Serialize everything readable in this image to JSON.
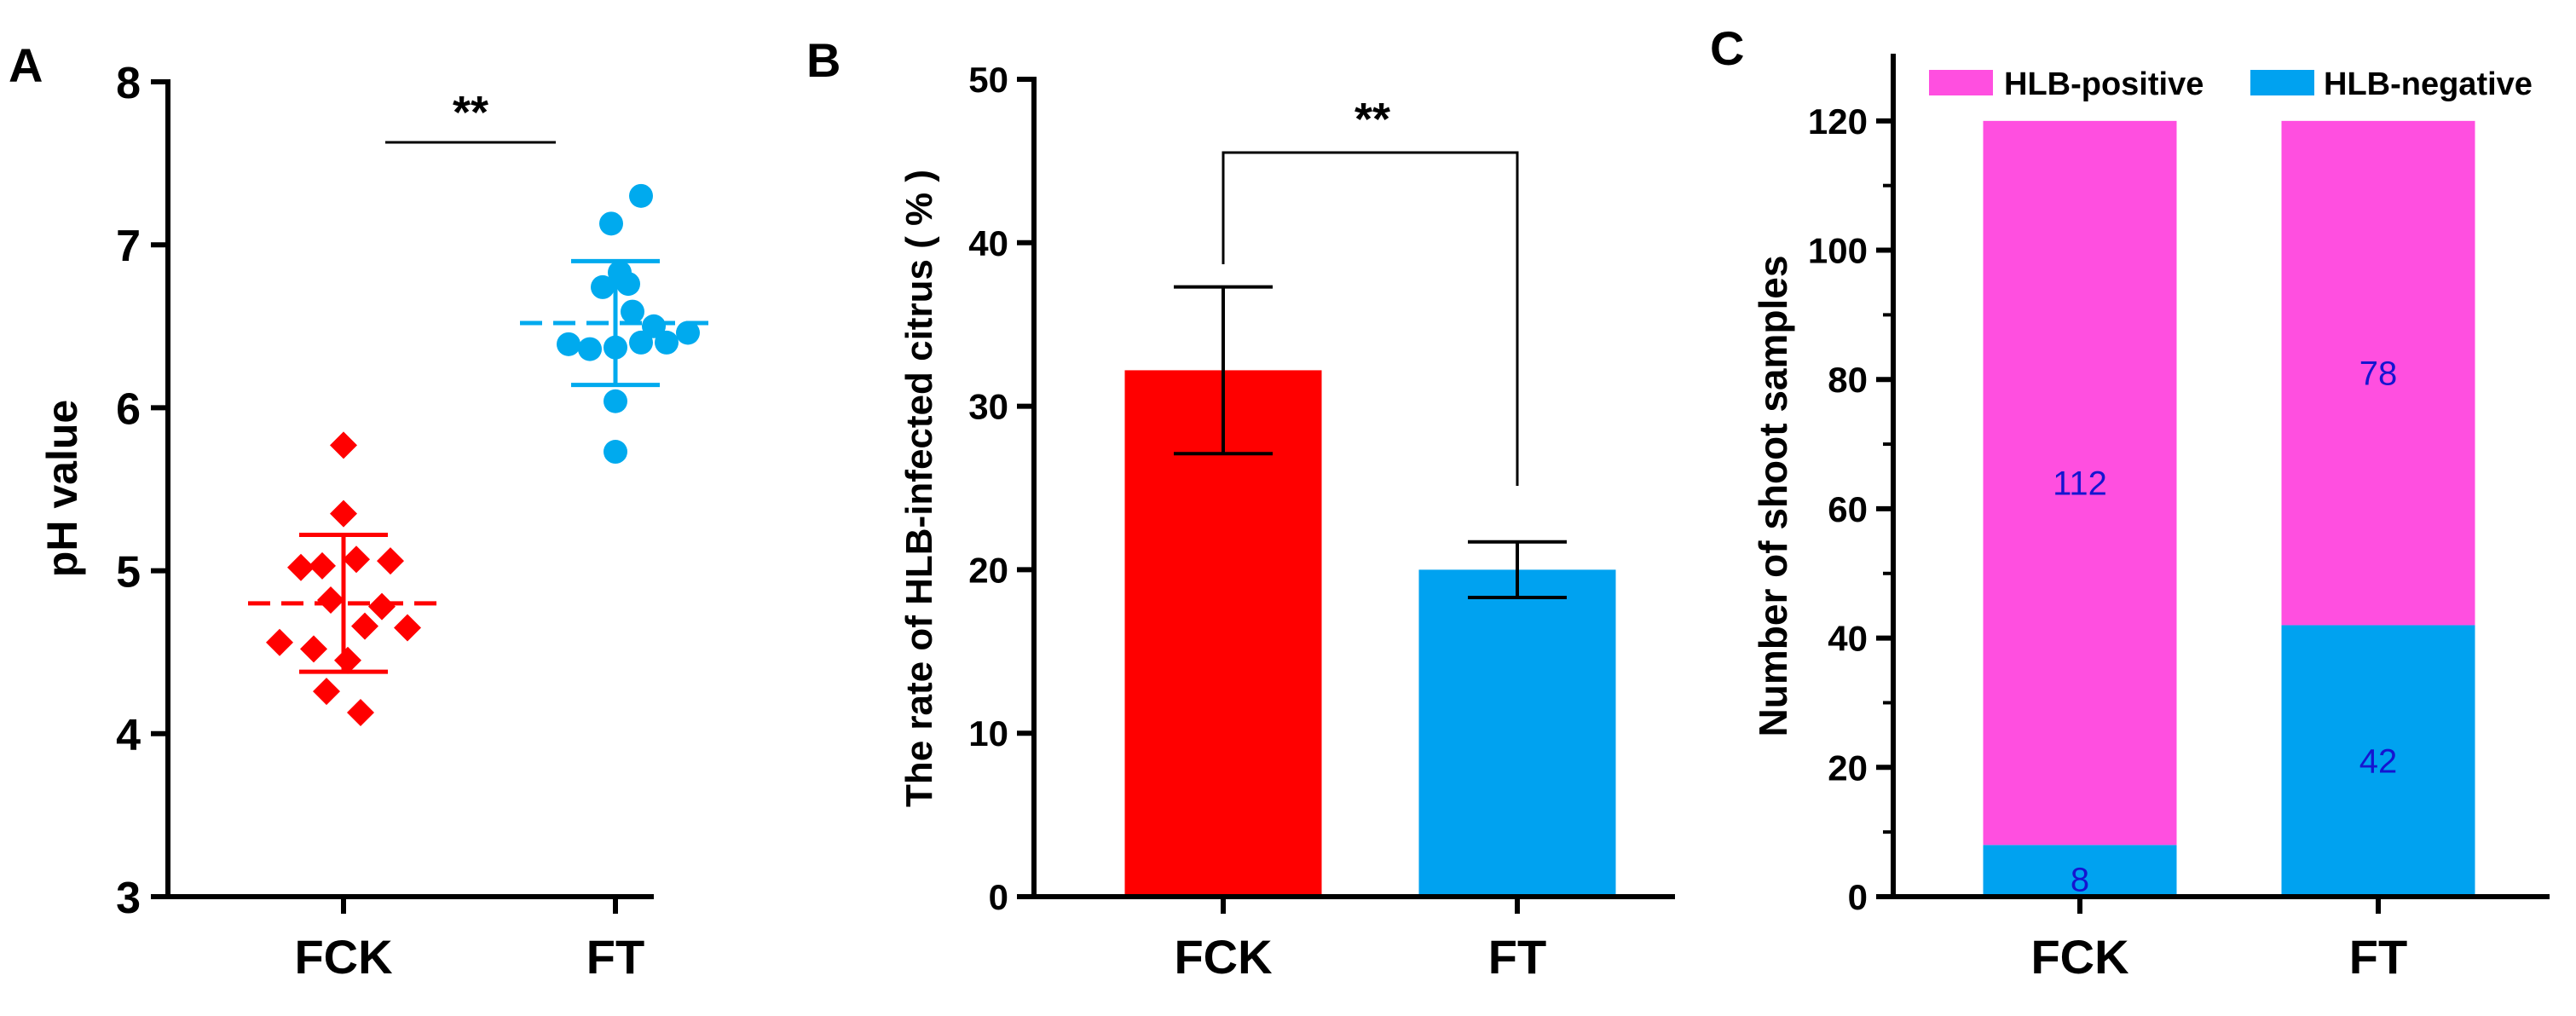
{
  "chart_data": [
    {
      "panel": "A",
      "type": "scatter",
      "title": "",
      "xlabel": "",
      "ylabel": "pH value",
      "ylim": [
        3,
        8
      ],
      "yticks": [
        3,
        4,
        5,
        6,
        7,
        8
      ],
      "categories": [
        "FCK",
        "FT"
      ],
      "significance": "**",
      "series": [
        {
          "name": "FCK",
          "color": "#ff0000",
          "marker": "diamond",
          "mean": 4.8,
          "sd": 0.42,
          "points": [
            {
              "offset": 0.0,
              "y": 5.77
            },
            {
              "offset": 0.0,
              "y": 5.35
            },
            {
              "offset": -0.5,
              "y": 5.02
            },
            {
              "offset": -0.25,
              "y": 5.03
            },
            {
              "offset": 0.15,
              "y": 5.07
            },
            {
              "offset": 0.55,
              "y": 5.06
            },
            {
              "offset": -0.15,
              "y": 4.82
            },
            {
              "offset": 0.45,
              "y": 4.78
            },
            {
              "offset": 0.25,
              "y": 4.66
            },
            {
              "offset": 0.75,
              "y": 4.65
            },
            {
              "offset": -0.75,
              "y": 4.56
            },
            {
              "offset": -0.35,
              "y": 4.52
            },
            {
              "offset": 0.05,
              "y": 4.45
            },
            {
              "offset": -0.2,
              "y": 4.26
            },
            {
              "offset": 0.2,
              "y": 4.13
            }
          ]
        },
        {
          "name": "FT",
          "color": "#00aaee",
          "marker": "circle",
          "mean": 6.52,
          "sd": 0.38,
          "points": [
            {
              "offset": 0.3,
              "y": 7.3
            },
            {
              "offset": -0.05,
              "y": 7.13
            },
            {
              "offset": 0.05,
              "y": 6.83
            },
            {
              "offset": -0.15,
              "y": 6.74
            },
            {
              "offset": 0.15,
              "y": 6.76
            },
            {
              "offset": 0.2,
              "y": 6.59
            },
            {
              "offset": 0.45,
              "y": 6.5
            },
            {
              "offset": 0.85,
              "y": 6.46
            },
            {
              "offset": 0.6,
              "y": 6.4
            },
            {
              "offset": -0.55,
              "y": 6.39
            },
            {
              "offset": -0.3,
              "y": 6.36
            },
            {
              "offset": 0.0,
              "y": 6.37
            },
            {
              "offset": 0.3,
              "y": 6.4
            },
            {
              "offset": 0.0,
              "y": 6.04
            },
            {
              "offset": 0.0,
              "y": 5.73
            }
          ]
        }
      ]
    },
    {
      "panel": "B",
      "type": "bar",
      "title": "",
      "xlabel": "",
      "ylabel": "The rate of HLB-infected citrus ( % )",
      "ylim": [
        0,
        50
      ],
      "yticks": [
        0,
        10,
        20,
        30,
        40,
        50
      ],
      "categories": [
        "FCK",
        "FT"
      ],
      "values": [
        32.2,
        20.0
      ],
      "errors": [
        5.1,
        1.7
      ],
      "colors": [
        "#ff0000",
        "#00a2f0"
      ],
      "significance": "**"
    },
    {
      "panel": "C",
      "type": "bar",
      "stacked": true,
      "title": "",
      "xlabel": "",
      "ylabel": "Number of shoot samples",
      "ylim": [
        0,
        130
      ],
      "yticks": [
        0,
        20,
        40,
        60,
        80,
        100,
        120
      ],
      "categories": [
        "FCK",
        "FT"
      ],
      "series": [
        {
          "name": "HLB-negative",
          "values": [
            8,
            42
          ],
          "color": "#00a2f0",
          "labels": [
            "8",
            "42"
          ]
        },
        {
          "name": "HLB-positive",
          "values": [
            112,
            78
          ],
          "color": "#ff4fe0",
          "labels": [
            "112",
            "78"
          ]
        }
      ],
      "legend": {
        "placement": "top",
        "entries": [
          "HLB-positive",
          "HLB-negative"
        ]
      },
      "label_color": "#1515d0"
    }
  ]
}
